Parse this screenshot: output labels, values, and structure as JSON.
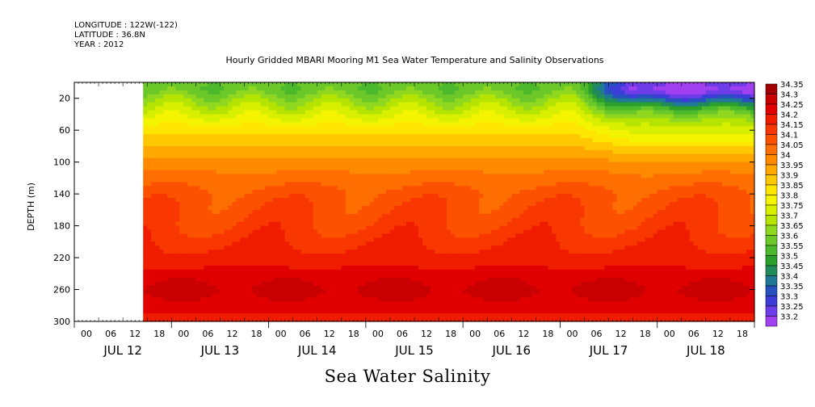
{
  "header": {
    "longitude": "LONGITUDE : 122W(-122)",
    "latitude": "LATITUDE : 36.8N",
    "year": "YEAR : 2012"
  },
  "caption": "Sea Water Salinity",
  "chart_data": {
    "type": "heatmap",
    "title": "Hourly Gridded MBARI Mooring M1 Sea Water Temperature and Salinity Observations",
    "ylabel": "DEPTH (m)",
    "xlabel": "",
    "x_range_hours": [
      0,
      168
    ],
    "data_start_hour": 17,
    "y_range": [
      0,
      300
    ],
    "y_reversed": true,
    "y_ticks": [
      20,
      60,
      100,
      140,
      180,
      220,
      260,
      300
    ],
    "x_hour_ticks": [
      "00",
      "06",
      "12",
      "18",
      "00",
      "06",
      "12",
      "18",
      "00",
      "06",
      "12",
      "18",
      "00",
      "06",
      "12",
      "18",
      "00",
      "06",
      "12",
      "18",
      "00",
      "06",
      "12",
      "18",
      "00",
      "06",
      "12",
      "18"
    ],
    "x_day_labels": [
      "JUL 12",
      "JUL 13",
      "JUL 14",
      "JUL 15",
      "JUL 16",
      "JUL 17",
      "JUL 18"
    ],
    "colorbar": {
      "levels": [
        34.35,
        34.3,
        34.25,
        34.2,
        34.15,
        34.1,
        34.05,
        34,
        33.95,
        33.9,
        33.85,
        33.8,
        33.75,
        33.7,
        33.65,
        33.6,
        33.55,
        33.5,
        33.45,
        33.4,
        33.35,
        33.3,
        33.25,
        33.2
      ],
      "labels": [
        "34.35",
        "34.3",
        "34.25",
        "34.2",
        "34.15",
        "34.1",
        "34.05",
        "34",
        "33.95",
        "33.9",
        "33.85",
        "33.8",
        "33.75",
        "33.7",
        "33.65",
        "33.6",
        "33.55",
        "33.5",
        "33.45",
        "33.4",
        "33.35",
        "33.3",
        "33.25",
        "33.2"
      ],
      "colors": [
        "#a00000",
        "#c80000",
        "#e00000",
        "#f01c00",
        "#f83800",
        "#fc5200",
        "#fe6e00",
        "#ff8a00",
        "#ffa800",
        "#ffc800",
        "#ffe600",
        "#f4f400",
        "#d8f000",
        "#b4e400",
        "#90d820",
        "#6cc828",
        "#4cb82c",
        "#2ca02c",
        "#208a5a",
        "#1e7896",
        "#2850c0",
        "#3c3cd8",
        "#6e3ce8",
        "#a040f0"
      ]
    },
    "depth_profile_salinity": [
      {
        "depth": 10,
        "value": 33.62
      },
      {
        "depth": 20,
        "value": 33.68
      },
      {
        "depth": 40,
        "value": 33.78
      },
      {
        "depth": 60,
        "value": 33.88
      },
      {
        "depth": 80,
        "value": 33.95
      },
      {
        "depth": 100,
        "value": 34.02
      },
      {
        "depth": 120,
        "value": 34.07
      },
      {
        "depth": 140,
        "value": 34.12
      },
      {
        "depth": 180,
        "value": 34.16
      },
      {
        "depth": 220,
        "value": 34.22
      },
      {
        "depth": 240,
        "value": 34.27
      },
      {
        "depth": 260,
        "value": 34.32
      },
      {
        "depth": 280,
        "value": 34.28
      },
      {
        "depth": 300,
        "value": 34.22
      }
    ],
    "features": [
      {
        "note": "fresher surface water (33.3-33.45)",
        "hours": [
          126,
          168
        ],
        "depths": [
          0,
          30
        ]
      },
      {
        "note": "salty core",
        "depths": [
          245,
          275
        ]
      }
    ]
  }
}
